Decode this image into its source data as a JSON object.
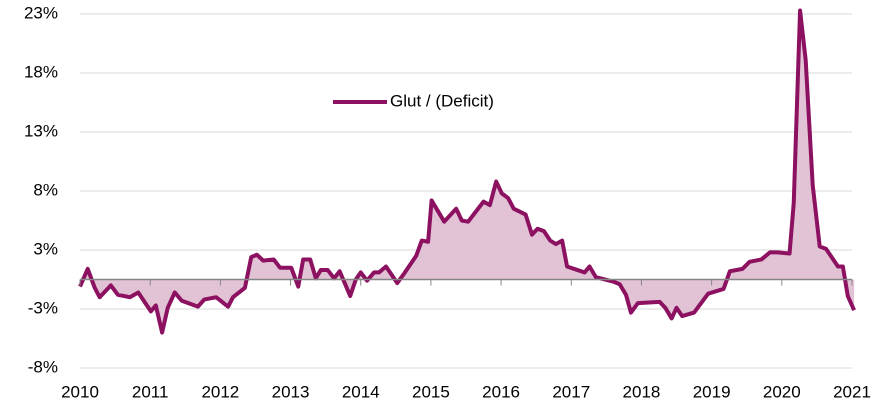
{
  "chart_data": {
    "type": "area",
    "legend": "top-center",
    "grid": true,
    "xlim": [
      2010,
      2021
    ],
    "xticks": [
      2010,
      2011,
      2012,
      2013,
      2014,
      2015,
      2016,
      2017,
      2018,
      2019,
      2020,
      2021
    ],
    "ylim": [
      -7.5,
      22.5
    ],
    "yticks": [
      {
        "value": -7.5,
        "label": "-8%"
      },
      {
        "value": -2.5,
        "label": "-3%"
      },
      {
        "value": 2.5,
        "label": "3%"
      },
      {
        "value": 7.5,
        "label": "8%"
      },
      {
        "value": 12.5,
        "label": "13%"
      },
      {
        "value": 17.5,
        "label": "18%"
      },
      {
        "value": 22.5,
        "label": "23%"
      }
    ],
    "x": [
      2010.0,
      2010.11,
      2010.21,
      2010.28,
      2010.44,
      2010.54,
      2010.71,
      2010.83,
      2011.01,
      2011.08,
      2011.17,
      2011.25,
      2011.35,
      2011.45,
      2011.68,
      2011.77,
      2011.94,
      2012.11,
      2012.18,
      2012.35,
      2012.44,
      2012.52,
      2012.61,
      2012.76,
      2012.85,
      2013.01,
      2013.11,
      2013.18,
      2013.28,
      2013.36,
      2013.43,
      2013.53,
      2013.62,
      2013.7,
      2013.85,
      2013.93,
      2014.0,
      2014.09,
      2014.19,
      2014.26,
      2014.36,
      2014.52,
      2014.63,
      2014.79,
      2014.87,
      2014.96,
      2015.01,
      2015.19,
      2015.36,
      2015.44,
      2015.53,
      2015.75,
      2015.84,
      2015.93,
      2016.01,
      2016.1,
      2016.18,
      2016.35,
      2016.44,
      2016.52,
      2016.61,
      2016.7,
      2016.78,
      2016.87,
      2016.94,
      2017.19,
      2017.26,
      2017.35,
      2017.61,
      2017.69,
      2017.78,
      2017.85,
      2017.95,
      2018.26,
      2018.34,
      2018.43,
      2018.5,
      2018.58,
      2018.75,
      2018.95,
      2019.17,
      2019.26,
      2019.44,
      2019.54,
      2019.71,
      2019.83,
      2019.94,
      2020.11,
      2020.17,
      2020.26,
      2020.34,
      2020.44,
      2020.54,
      2020.63,
      2020.8,
      2020.87,
      2020.94,
      2021.03
    ],
    "series": [
      {
        "name": "Glut / (Deficit)",
        "color": "#8c1160",
        "fill": "#e2c3d6",
        "values": [
          -0.6,
          0.9,
          -0.7,
          -1.5,
          -0.5,
          -1.3,
          -1.5,
          -1.1,
          -2.7,
          -2.2,
          -4.5,
          -2.4,
          -1.1,
          -1.8,
          -2.3,
          -1.7,
          -1.5,
          -2.3,
          -1.5,
          -0.7,
          1.9,
          2.1,
          1.6,
          1.7,
          1.0,
          1.0,
          -0.6,
          1.7,
          1.7,
          0.1,
          0.8,
          0.8,
          0.1,
          0.7,
          -1.4,
          0.0,
          0.6,
          -0.1,
          0.6,
          0.6,
          1.1,
          -0.3,
          0.6,
          2.0,
          3.3,
          3.2,
          6.7,
          4.9,
          6.0,
          5.0,
          4.9,
          6.6,
          6.3,
          8.3,
          7.3,
          6.9,
          6.0,
          5.5,
          3.8,
          4.3,
          4.1,
          3.3,
          3.0,
          3.3,
          1.1,
          0.6,
          1.1,
          0.2,
          -0.2,
          -0.4,
          -1.3,
          -2.8,
          -2.0,
          -1.9,
          -2.4,
          -3.3,
          -2.4,
          -3.1,
          -2.8,
          -1.2,
          -0.8,
          0.7,
          0.9,
          1.5,
          1.7,
          2.3,
          2.3,
          2.2,
          6.5,
          22.8,
          18.6,
          8.0,
          2.8,
          2.6,
          1.1,
          1.1,
          -1.4,
          -2.6
        ]
      }
    ]
  }
}
